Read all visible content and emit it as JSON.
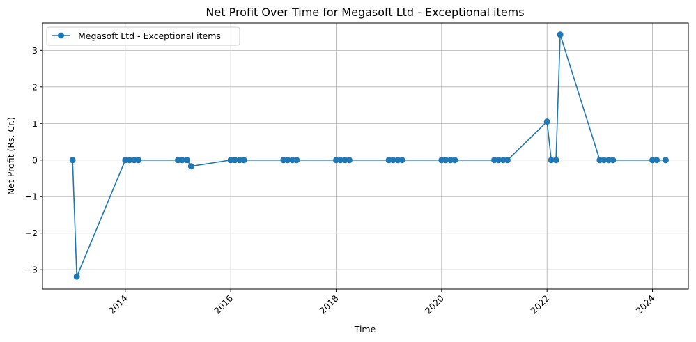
{
  "chart_data": {
    "type": "line",
    "title": "Net Profit Over Time for Megasoft Ltd - Exceptional items",
    "xlabel": "Time",
    "ylabel": "Net Profit (Rs. Cr.)",
    "xlim": [
      2012.43,
      2024.68
    ],
    "ylim": [
      -3.53,
      3.75
    ],
    "xticks": [
      2014,
      2016,
      2018,
      2020,
      2022,
      2024
    ],
    "xtick_labels": [
      "2014",
      "2016",
      "2018",
      "2020",
      "2022",
      "2024"
    ],
    "yticks": [
      -3,
      -2,
      -1,
      0,
      1,
      2,
      3
    ],
    "ytick_labels": [
      "−3",
      "−2",
      "−1",
      "0",
      "1",
      "2",
      "3"
    ],
    "grid": true,
    "legend_position": "top-left",
    "color": "#1f77b4",
    "series": [
      {
        "name": "Megasoft Ltd - Exceptional items",
        "x": [
          2013.0,
          2013.08,
          2014.0,
          2014.08,
          2014.17,
          2014.25,
          2015.0,
          2015.08,
          2015.17,
          2015.25,
          2016.0,
          2016.08,
          2016.17,
          2016.25,
          2017.0,
          2017.08,
          2017.17,
          2017.25,
          2018.0,
          2018.08,
          2018.17,
          2018.25,
          2019.0,
          2019.08,
          2019.17,
          2019.25,
          2020.0,
          2020.08,
          2020.17,
          2020.25,
          2021.0,
          2021.08,
          2021.17,
          2021.25,
          2022.0,
          2022.08,
          2022.17,
          2022.25,
          2023.0,
          2023.08,
          2023.17,
          2023.25,
          2024.0,
          2024.08,
          2024.25
        ],
        "values": [
          0,
          -3.19,
          0,
          0,
          0,
          0,
          0,
          0,
          0,
          -0.17,
          0,
          0,
          0,
          0,
          0,
          0,
          0,
          0,
          0,
          0,
          0,
          0,
          0,
          0,
          0,
          0,
          0,
          0,
          0,
          0,
          0,
          0,
          0,
          0,
          1.05,
          0,
          0,
          3.43,
          0,
          0,
          0,
          0,
          0,
          0,
          0
        ]
      }
    ]
  }
}
